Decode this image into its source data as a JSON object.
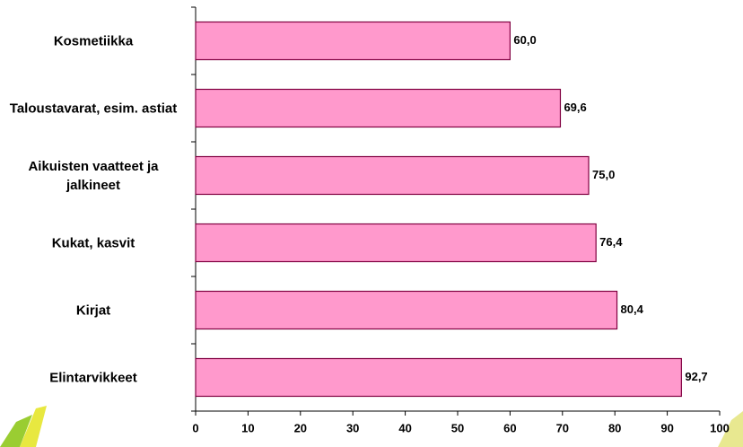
{
  "chart_data": {
    "type": "barh",
    "categories": [
      "Kosmetiikka",
      "Taloustavarat, esim. astiat",
      "Aikuisten vaatteet ja jalkineet",
      "Kukat, kasvit",
      "Kirjat",
      "Elintarvikkeet"
    ],
    "values": [
      60.0,
      69.6,
      75.0,
      76.4,
      80.4,
      92.7
    ],
    "value_labels": [
      "60,0",
      "69,6",
      "75,0",
      "76,4",
      "80,4",
      "92,7"
    ],
    "color": "#ff99cc",
    "xlim": [
      0,
      100
    ],
    "xticks": [
      0,
      10,
      20,
      30,
      40,
      50,
      60,
      70,
      80,
      90,
      100
    ]
  }
}
